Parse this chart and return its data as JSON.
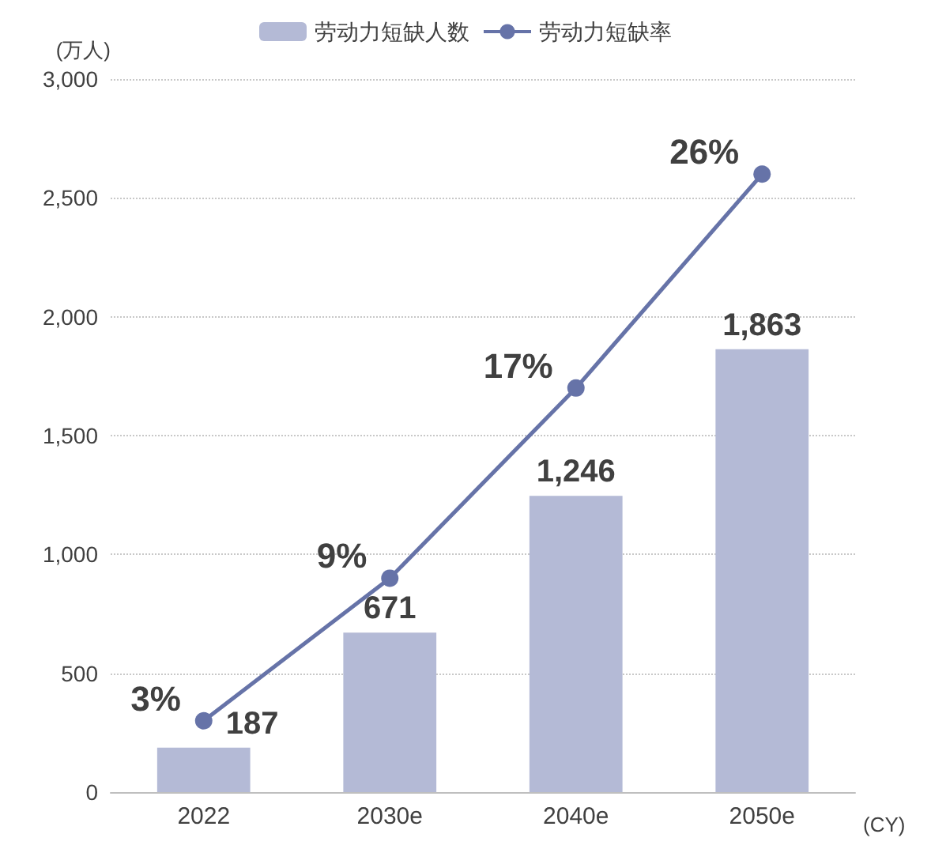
{
  "chart_data": {
    "type": "bar",
    "xlabel": "(CY)",
    "ylabel": "(万人)",
    "categories": [
      "2022",
      "2030e",
      "2040e",
      "2050e"
    ],
    "series": [
      {
        "name": "劳动力短缺人数",
        "color": "#b4bad6",
        "values": [
          187,
          671,
          1246,
          1863
        ],
        "value_labels": [
          "187",
          "671",
          "1,246",
          "1,863"
        ]
      },
      {
        "name": "劳动力短缺率",
        "type": "line",
        "axis": "y2",
        "color": "#6673a8",
        "marker": "circle",
        "values": [
          3,
          9,
          17,
          26
        ],
        "value_labels": [
          "3%",
          "9%",
          "17%",
          "26%"
        ]
      }
    ],
    "ylim": [
      0,
      3000
    ],
    "yticks": [
      {
        "value": 0,
        "label": "0"
      },
      {
        "value": 500,
        "label": "500"
      },
      {
        "value": 1000,
        "label": "1,000"
      },
      {
        "value": 1500,
        "label": "1,500"
      },
      {
        "value": 2000,
        "label": "2,000"
      },
      {
        "value": 2500,
        "label": "2,500"
      },
      {
        "value": 3000,
        "label": "3,000"
      }
    ],
    "y2lim": [
      0,
      30
    ],
    "grid": "y",
    "legend": "top"
  }
}
